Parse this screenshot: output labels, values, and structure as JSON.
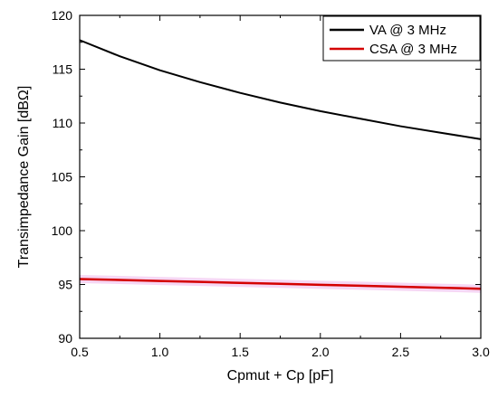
{
  "chart_data": {
    "type": "line",
    "xlabel": "Cpmut + Cp [pF]",
    "ylabel": "Transimpedance Gain [dBΩ]",
    "xlim": [
      0.5,
      3.0
    ],
    "ylim": [
      90,
      120
    ],
    "xticks": [
      "0.5",
      "1.0",
      "1.5",
      "2.0",
      "2.5",
      "3.0"
    ],
    "yticks": [
      "90",
      "95",
      "100",
      "105",
      "110",
      "115",
      "120"
    ],
    "grid": false,
    "legend_position": "top-right",
    "series": [
      {
        "name": "VA @ 3 MHz",
        "color": "#000000",
        "x": [
          0.5,
          0.75,
          1.0,
          1.25,
          1.5,
          1.75,
          2.0,
          2.25,
          2.5,
          2.75,
          3.0
        ],
        "y": [
          117.7,
          116.2,
          114.9,
          113.8,
          112.8,
          111.9,
          111.1,
          110.4,
          109.7,
          109.1,
          108.5
        ]
      },
      {
        "name": "CSA @ 3 MHz",
        "color": "#d40000",
        "x": [
          0.5,
          0.75,
          1.0,
          1.25,
          1.5,
          1.75,
          2.0,
          2.25,
          2.5,
          2.75,
          3.0
        ],
        "y": [
          95.5,
          95.42,
          95.33,
          95.24,
          95.15,
          95.06,
          94.97,
          94.88,
          94.79,
          94.7,
          94.6
        ]
      }
    ]
  }
}
